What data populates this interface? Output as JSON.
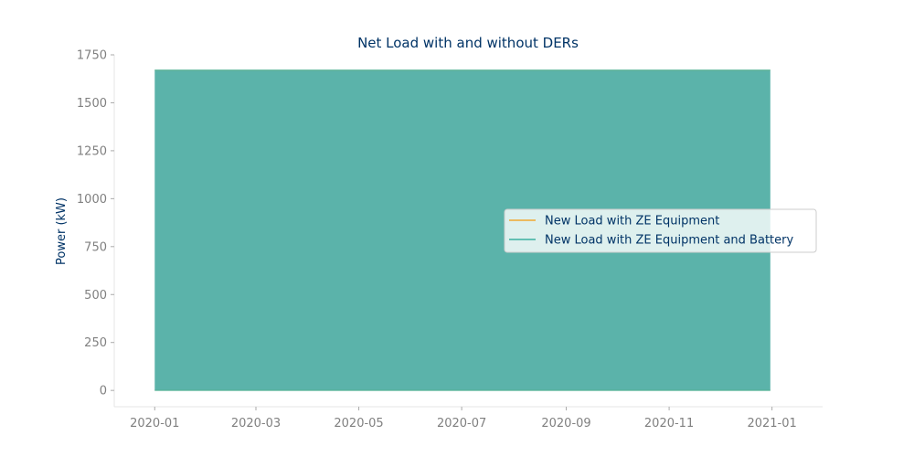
{
  "chart_data": {
    "type": "area",
    "title": "Net Load with and without DERs",
    "xlabel": "",
    "ylabel": "Power (kW)",
    "x_ticks": [
      "2020-01",
      "2020-03",
      "2020-05",
      "2020-07",
      "2020-09",
      "2020-11",
      "2021-01"
    ],
    "y_ticks": [
      "0",
      "250",
      "500",
      "750",
      "1000",
      "1250",
      "1500",
      "1750"
    ],
    "xlim": [
      "2019-12-08",
      "2021-01-31"
    ],
    "ylim": [
      -85,
      1750
    ],
    "grid": false,
    "legend_position": "right",
    "x_range": [
      "2020-01-01",
      "2020-12-31"
    ],
    "y_band": [
      0,
      1670
    ],
    "series": [
      {
        "name": "New Load with ZE Equipment",
        "color": "#f0a830",
        "range": [
          0,
          1670
        ]
      },
      {
        "name": "New Load with ZE Equipment and Battery",
        "color": "#3ab0a0",
        "range": [
          0,
          1670
        ]
      }
    ],
    "colors": {
      "title": "#003366",
      "tick_text": "#808080",
      "axis_line": "#e6e6e6",
      "fill": "#5bb3aa",
      "legend_bg": "#ffffff",
      "legend_border": "#cccccc"
    }
  }
}
